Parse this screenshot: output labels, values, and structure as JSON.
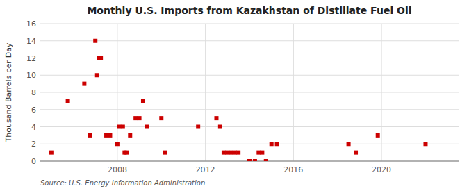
{
  "chart_data": {
    "type": "scatter",
    "title": "Monthly U.S. Imports from Kazakhstan of Distillate Fuel Oil",
    "ylabel": "Thousand Barrels per Day",
    "annotations": [
      "Source: U.S. Energy Information Administration"
    ],
    "color": "#cc0000",
    "marker": "square",
    "grid": true,
    "xlim": [
      2004.5,
      2023.5
    ],
    "ylim": [
      0,
      16
    ],
    "xticks": [
      2008,
      2012,
      2016,
      2020
    ],
    "yticks": [
      0,
      2,
      4,
      6,
      8,
      10,
      12,
      14,
      16
    ],
    "x": [
      2005.0,
      2005.75,
      2006.5,
      2006.75,
      2007.0,
      2007.08,
      2007.17,
      2007.25,
      2007.5,
      2007.67,
      2008.0,
      2008.08,
      2008.25,
      2008.33,
      2008.42,
      2008.58,
      2008.83,
      2009.0,
      2009.17,
      2009.33,
      2010.0,
      2010.17,
      2011.67,
      2012.5,
      2012.67,
      2012.83,
      2013.0,
      2013.17,
      2013.33,
      2013.5,
      2014.0,
      2014.25,
      2014.42,
      2014.58,
      2014.75,
      2015.0,
      2015.25,
      2018.5,
      2018.83,
      2019.83,
      2022.0
    ],
    "values": [
      1,
      7,
      9,
      3,
      14,
      10,
      12,
      12,
      3,
      3,
      2,
      4,
      4,
      1,
      1,
      3,
      5,
      5,
      7,
      4,
      5,
      1,
      4,
      5,
      4,
      1,
      1,
      1,
      1,
      1,
      0,
      0,
      1,
      1,
      0,
      2,
      2,
      2,
      1,
      3,
      2
    ]
  }
}
